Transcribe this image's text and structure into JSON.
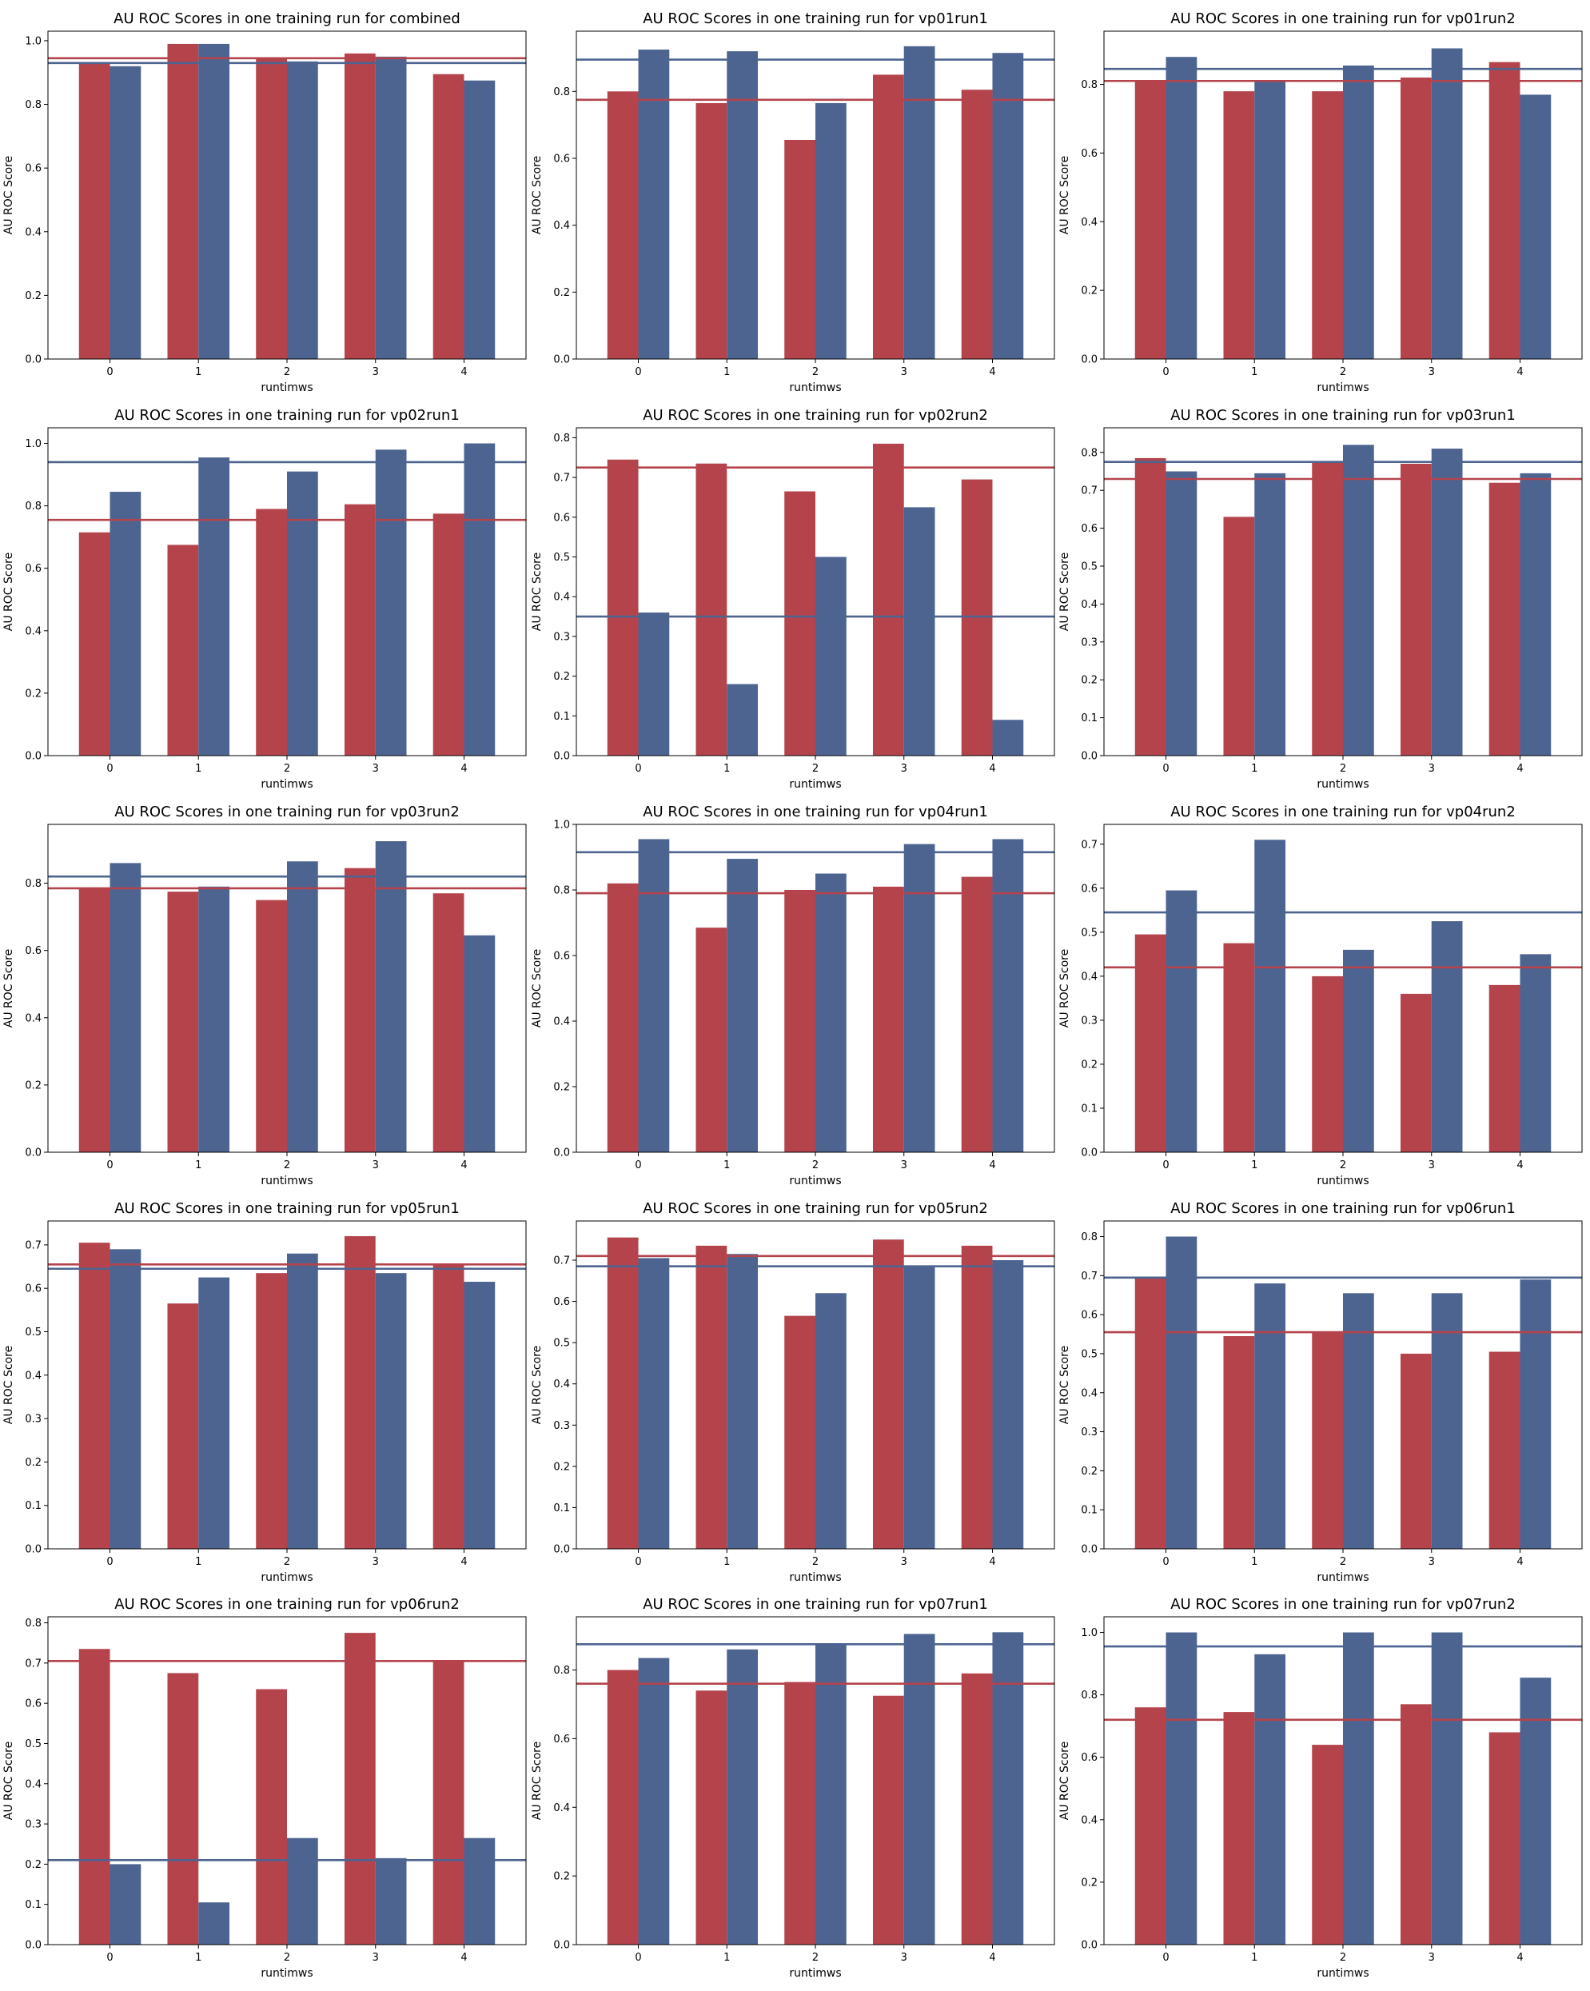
{
  "colors": {
    "series_a": "#b5434c",
    "series_b": "#4d6491",
    "axis": "#000000"
  },
  "chart_data": [
    {
      "type": "bar",
      "title": "AU ROC Scores in one training run for combined",
      "xlabel": "runtimws",
      "ylabel": "AU ROC Score",
      "categories": [
        "0",
        "1",
        "2",
        "3",
        "4"
      ],
      "ylim": [
        0,
        1.03
      ],
      "yticks": [
        "0.0",
        "0.2",
        "0.4",
        "0.6",
        "0.8",
        "1.0"
      ],
      "series": [
        {
          "values": [
            0.93,
            0.99,
            0.945,
            0.96,
            0.895
          ]
        },
        {
          "values": [
            0.92,
            0.99,
            0.935,
            0.95,
            0.875
          ]
        }
      ],
      "hlines": [
        0.945,
        0.93
      ]
    },
    {
      "type": "bar",
      "title": "AU ROC Scores in one training run for vp01run1",
      "xlabel": "runtimws",
      "ylabel": "AU ROC Score",
      "categories": [
        "0",
        "1",
        "2",
        "3",
        "4"
      ],
      "ylim": [
        0,
        0.98
      ],
      "yticks": [
        "0.0",
        "0.2",
        "0.4",
        "0.6",
        "0.8"
      ],
      "series": [
        {
          "values": [
            0.8,
            0.765,
            0.655,
            0.85,
            0.805
          ]
        },
        {
          "values": [
            0.925,
            0.92,
            0.765,
            0.935,
            0.915
          ]
        }
      ],
      "hlines": [
        0.775,
        0.895
      ]
    },
    {
      "type": "bar",
      "title": "AU ROC Scores in one training run for vp01run2",
      "xlabel": "runtimws",
      "ylabel": "AU ROC Score",
      "categories": [
        "0",
        "1",
        "2",
        "3",
        "4"
      ],
      "ylim": [
        0,
        0.955
      ],
      "yticks": [
        "0.0",
        "0.2",
        "0.4",
        "0.6",
        "0.8"
      ],
      "series": [
        {
          "values": [
            0.81,
            0.78,
            0.78,
            0.82,
            0.865
          ]
        },
        {
          "values": [
            0.88,
            0.81,
            0.855,
            0.905,
            0.77
          ]
        }
      ],
      "hlines": [
        0.81,
        0.845
      ]
    },
    {
      "type": "bar",
      "title": "AU ROC Scores in one training run for vp02run1",
      "xlabel": "runtimws",
      "ylabel": "AU ROC Score",
      "categories": [
        "0",
        "1",
        "2",
        "3",
        "4"
      ],
      "ylim": [
        0,
        1.05
      ],
      "yticks": [
        "0.0",
        "0.2",
        "0.4",
        "0.6",
        "0.8",
        "1.0"
      ],
      "series": [
        {
          "values": [
            0.715,
            0.675,
            0.79,
            0.805,
            0.775
          ]
        },
        {
          "values": [
            0.845,
            0.955,
            0.91,
            0.98,
            1.0
          ]
        }
      ],
      "hlines": [
        0.755,
        0.94
      ]
    },
    {
      "type": "bar",
      "title": "AU ROC Scores in one training run for vp02run2",
      "xlabel": "runtimws",
      "ylabel": "AU ROC Score",
      "categories": [
        "0",
        "1",
        "2",
        "3",
        "4"
      ],
      "ylim": [
        0,
        0.825
      ],
      "yticks": [
        "0.0",
        "0.1",
        "0.2",
        "0.3",
        "0.4",
        "0.5",
        "0.6",
        "0.7",
        "0.8"
      ],
      "series": [
        {
          "values": [
            0.745,
            0.735,
            0.665,
            0.785,
            0.695
          ]
        },
        {
          "values": [
            0.36,
            0.18,
            0.5,
            0.625,
            0.09
          ]
        }
      ],
      "hlines": [
        0.725,
        0.35
      ]
    },
    {
      "type": "bar",
      "title": "AU ROC Scores in one training run for vp03run1",
      "xlabel": "runtimws",
      "ylabel": "AU ROC Score",
      "categories": [
        "0",
        "1",
        "2",
        "3",
        "4"
      ],
      "ylim": [
        0,
        0.865
      ],
      "yticks": [
        "0.0",
        "0.1",
        "0.2",
        "0.3",
        "0.4",
        "0.5",
        "0.6",
        "0.7",
        "0.8"
      ],
      "series": [
        {
          "values": [
            0.785,
            0.63,
            0.775,
            0.77,
            0.72
          ]
        },
        {
          "values": [
            0.75,
            0.745,
            0.82,
            0.81,
            0.745
          ]
        }
      ],
      "hlines": [
        0.73,
        0.775
      ]
    },
    {
      "type": "bar",
      "title": "AU ROC Scores in one training run for vp03run2",
      "xlabel": "runtimws",
      "ylabel": "AU ROC Score",
      "categories": [
        "0",
        "1",
        "2",
        "3",
        "4"
      ],
      "ylim": [
        0,
        0.975
      ],
      "yticks": [
        "0.0",
        "0.2",
        "0.4",
        "0.6",
        "0.8"
      ],
      "series": [
        {
          "values": [
            0.785,
            0.775,
            0.75,
            0.845,
            0.77
          ]
        },
        {
          "values": [
            0.86,
            0.79,
            0.865,
            0.925,
            0.645
          ]
        }
      ],
      "hlines": [
        0.785,
        0.82
      ]
    },
    {
      "type": "bar",
      "title": "AU ROC Scores in one training run for vp04run1",
      "xlabel": "runtimws",
      "ylabel": "AU ROC Score",
      "categories": [
        "0",
        "1",
        "2",
        "3",
        "4"
      ],
      "ylim": [
        0,
        1.0
      ],
      "yticks": [
        "0.0",
        "0.2",
        "0.4",
        "0.6",
        "0.8",
        "1.0"
      ],
      "series": [
        {
          "values": [
            0.82,
            0.685,
            0.8,
            0.81,
            0.84
          ]
        },
        {
          "values": [
            0.955,
            0.895,
            0.85,
            0.94,
            0.955
          ]
        }
      ],
      "hlines": [
        0.79,
        0.915
      ]
    },
    {
      "type": "bar",
      "title": "AU ROC Scores in one training run for vp04run2",
      "xlabel": "runtimws",
      "ylabel": "AU ROC Score",
      "categories": [
        "0",
        "1",
        "2",
        "3",
        "4"
      ],
      "ylim": [
        0,
        0.745
      ],
      "yticks": [
        "0.0",
        "0.1",
        "0.2",
        "0.3",
        "0.4",
        "0.5",
        "0.6",
        "0.7"
      ],
      "series": [
        {
          "values": [
            0.495,
            0.475,
            0.4,
            0.36,
            0.38
          ]
        },
        {
          "values": [
            0.595,
            0.71,
            0.46,
            0.525,
            0.45
          ]
        }
      ],
      "hlines": [
        0.42,
        0.545
      ]
    },
    {
      "type": "bar",
      "title": "AU ROC Scores in one training run for vp05run1",
      "xlabel": "runtimws",
      "ylabel": "AU ROC Score",
      "categories": [
        "0",
        "1",
        "2",
        "3",
        "4"
      ],
      "ylim": [
        0,
        0.755
      ],
      "yticks": [
        "0.0",
        "0.1",
        "0.2",
        "0.3",
        "0.4",
        "0.5",
        "0.6",
        "0.7"
      ],
      "series": [
        {
          "values": [
            0.705,
            0.565,
            0.635,
            0.72,
            0.655
          ]
        },
        {
          "values": [
            0.69,
            0.625,
            0.68,
            0.635,
            0.615
          ]
        }
      ],
      "hlines": [
        0.655,
        0.645
      ]
    },
    {
      "type": "bar",
      "title": "AU ROC Scores in one training run for vp05run2",
      "xlabel": "runtimws",
      "ylabel": "AU ROC Score",
      "categories": [
        "0",
        "1",
        "2",
        "3",
        "4"
      ],
      "ylim": [
        0,
        0.795
      ],
      "yticks": [
        "0.0",
        "0.1",
        "0.2",
        "0.3",
        "0.4",
        "0.5",
        "0.6",
        "0.7"
      ],
      "series": [
        {
          "values": [
            0.755,
            0.735,
            0.565,
            0.75,
            0.735
          ]
        },
        {
          "values": [
            0.705,
            0.715,
            0.62,
            0.685,
            0.7
          ]
        }
      ],
      "hlines": [
        0.71,
        0.685
      ]
    },
    {
      "type": "bar",
      "title": "AU ROC Scores in one training run for vp06run1",
      "xlabel": "runtimws",
      "ylabel": "AU ROC Score",
      "categories": [
        "0",
        "1",
        "2",
        "3",
        "4"
      ],
      "ylim": [
        0,
        0.84
      ],
      "yticks": [
        "0.0",
        "0.1",
        "0.2",
        "0.3",
        "0.4",
        "0.5",
        "0.6",
        "0.7",
        "0.8"
      ],
      "series": [
        {
          "values": [
            0.695,
            0.545,
            0.555,
            0.5,
            0.505
          ]
        },
        {
          "values": [
            0.8,
            0.68,
            0.655,
            0.655,
            0.69
          ]
        }
      ],
      "hlines": [
        0.555,
        0.695
      ]
    },
    {
      "type": "bar",
      "title": "AU ROC Scores in one training run for vp06run2",
      "xlabel": "runtimws",
      "ylabel": "AU ROC Score",
      "categories": [
        "0",
        "1",
        "2",
        "3",
        "4"
      ],
      "ylim": [
        0,
        0.815
      ],
      "yticks": [
        "0.0",
        "0.1",
        "0.2",
        "0.3",
        "0.4",
        "0.5",
        "0.6",
        "0.7",
        "0.8"
      ],
      "series": [
        {
          "values": [
            0.735,
            0.675,
            0.635,
            0.775,
            0.705
          ]
        },
        {
          "values": [
            0.2,
            0.105,
            0.265,
            0.215,
            0.265
          ]
        }
      ],
      "hlines": [
        0.705,
        0.21
      ]
    },
    {
      "type": "bar",
      "title": "AU ROC Scores in one training run for vp07run1",
      "xlabel": "runtimws",
      "ylabel": "AU ROC Score",
      "categories": [
        "0",
        "1",
        "2",
        "3",
        "4"
      ],
      "ylim": [
        0,
        0.955
      ],
      "yticks": [
        "0.0",
        "0.2",
        "0.4",
        "0.6",
        "0.8"
      ],
      "series": [
        {
          "values": [
            0.8,
            0.74,
            0.765,
            0.725,
            0.79
          ]
        },
        {
          "values": [
            0.835,
            0.86,
            0.875,
            0.905,
            0.91
          ]
        }
      ],
      "hlines": [
        0.76,
        0.875
      ]
    },
    {
      "type": "bar",
      "title": "AU ROC Scores in one training run for vp07run2",
      "xlabel": "runtimws",
      "ylabel": "AU ROC Score",
      "categories": [
        "0",
        "1",
        "2",
        "3",
        "4"
      ],
      "ylim": [
        0,
        1.05
      ],
      "yticks": [
        "0.0",
        "0.2",
        "0.4",
        "0.6",
        "0.8",
        "1.0"
      ],
      "series": [
        {
          "values": [
            0.76,
            0.745,
            0.64,
            0.77,
            0.68
          ]
        },
        {
          "values": [
            1.0,
            0.93,
            1.0,
            1.0,
            0.855
          ]
        }
      ],
      "hlines": [
        0.72,
        0.955
      ]
    }
  ]
}
